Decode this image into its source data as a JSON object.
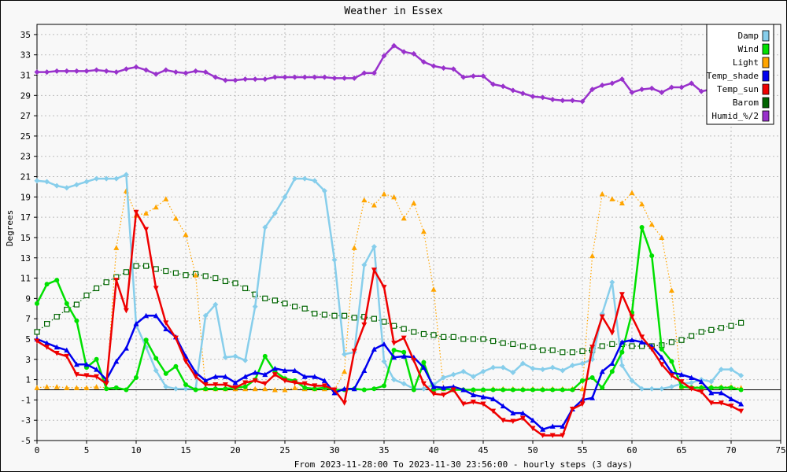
{
  "chart_data": {
    "type": "line",
    "title": "Weather in Essex",
    "xlabel": "From 2023-11-28:00 To 2023-11-30 23:56:00 - hourly steps (3 days)",
    "ylabel": "Degrees",
    "xlim": [
      0,
      75
    ],
    "ylim": [
      -5,
      36
    ],
    "xticks": [
      0,
      5,
      10,
      15,
      20,
      25,
      30,
      35,
      40,
      45,
      50,
      55,
      60,
      65,
      70,
      75
    ],
    "yticks": [
      -5,
      -3,
      -1,
      1,
      3,
      5,
      7,
      9,
      11,
      13,
      15,
      17,
      19,
      21,
      23,
      25,
      27,
      29,
      31,
      33,
      35
    ],
    "grid": true,
    "legend": "top-right",
    "x": [
      0,
      1,
      2,
      3,
      4,
      5,
      6,
      7,
      8,
      9,
      10,
      11,
      12,
      13,
      14,
      15,
      16,
      17,
      18,
      19,
      20,
      21,
      22,
      23,
      24,
      25,
      26,
      27,
      28,
      29,
      30,
      31,
      32,
      33,
      34,
      35,
      36,
      37,
      38,
      39,
      40,
      41,
      42,
      43,
      44,
      45,
      46,
      47,
      48,
      49,
      50,
      51,
      52,
      53,
      54,
      55,
      56,
      57,
      58,
      59,
      60,
      61,
      62,
      63,
      64,
      65,
      66,
      67,
      68,
      69,
      70,
      71
    ],
    "series": [
      {
        "name": "Damp",
        "color": "#87ceeb",
        "style": "solid",
        "marker": "diamond",
        "values": [
          20.6,
          20.5,
          20.1,
          19.9,
          20.2,
          20.5,
          20.8,
          20.8,
          20.8,
          21.2,
          6.4,
          4.2,
          1.9,
          0.3,
          0.1,
          0.1,
          0.1,
          7.3,
          8.4,
          3.2,
          3.3,
          2.9,
          8.2,
          16.0,
          17.4,
          19.0,
          20.8,
          20.8,
          20.6,
          19.6,
          12.8,
          3.5,
          3.7,
          12.3,
          14.1,
          2.8,
          1.0,
          0.6,
          0.1,
          0.1,
          0.5,
          1.2,
          1.5,
          1.8,
          1.3,
          1.8,
          2.2,
          2.2,
          1.7,
          2.6,
          2.1,
          2.0,
          2.2,
          1.9,
          2.4,
          2.6,
          3.0,
          7.5,
          10.6,
          2.4,
          0.9,
          0.1,
          0.1,
          0.1,
          0.3,
          0.6,
          0.7,
          1.0,
          0.8,
          2.0,
          2.0,
          1.4
        ]
      },
      {
        "name": "Wind",
        "color": "#00e000",
        "style": "solid",
        "marker": "circle",
        "values": [
          8.5,
          10.4,
          10.8,
          8.5,
          6.8,
          2.2,
          3.0,
          0.1,
          0.2,
          0.0,
          1.2,
          4.9,
          3.1,
          1.6,
          2.3,
          0.5,
          0.0,
          0.1,
          0.1,
          0.1,
          0.2,
          0.3,
          1.0,
          3.3,
          1.8,
          1.1,
          0.9,
          0.2,
          0.1,
          0.2,
          0.0,
          0.0,
          0.1,
          0.0,
          0.1,
          0.4,
          3.9,
          3.7,
          0.0,
          2.7,
          0.0,
          0.1,
          0.0,
          0.0,
          0.0,
          0.0,
          0.0,
          0.0,
          0.0,
          0.0,
          0.0,
          0.0,
          0.0,
          0.0,
          0.0,
          0.9,
          1.2,
          0.2,
          1.8,
          3.7,
          7.6,
          16.0,
          13.2,
          4.0,
          2.8,
          0.3,
          0.2,
          0.2,
          0.2,
          0.2,
          0.2,
          0.0
        ]
      },
      {
        "name": "Light",
        "color": "#ffa500",
        "style": "dotted",
        "marker": "triangle",
        "values": [
          0.2,
          0.3,
          0.3,
          0.2,
          0.2,
          0.2,
          0.3,
          0.2,
          14.0,
          19.6,
          17.2,
          17.4,
          18.0,
          18.8,
          16.9,
          15.3,
          11.3,
          0.1,
          0.1,
          0.1,
          0.1,
          0.1,
          0.1,
          0.1,
          0.0,
          0.0,
          0.2,
          0.1,
          0.1,
          0.1,
          0.0,
          1.8,
          14.0,
          18.7,
          18.2,
          19.3,
          19.0,
          16.9,
          18.4,
          15.6,
          9.9,
          0.1,
          0.0,
          0.0,
          0.0,
          0.0,
          0.1,
          0.1,
          0.1,
          0.1,
          0.1,
          0.1,
          0.1,
          0.1,
          0.1,
          0.1,
          13.2,
          19.3,
          18.8,
          18.4,
          19.4,
          18.3,
          16.3,
          15.0,
          9.8,
          0.3,
          0.3,
          0.3,
          0.3,
          0.3,
          0.3,
          0.2
        ]
      },
      {
        "name": "Temp_shade",
        "color": "#0000ee",
        "style": "solid",
        "marker": "triangle",
        "values": [
          5.0,
          4.6,
          4.2,
          3.9,
          2.5,
          2.5,
          2.0,
          1.0,
          2.8,
          4.1,
          6.5,
          7.3,
          7.3,
          6.0,
          5.2,
          3.3,
          1.7,
          0.9,
          1.3,
          1.3,
          0.7,
          1.3,
          1.7,
          1.5,
          2.1,
          1.9,
          1.9,
          1.3,
          1.3,
          0.9,
          -0.3,
          0.1,
          0.1,
          1.9,
          4.0,
          4.5,
          3.2,
          3.3,
          3.2,
          2.2,
          0.3,
          0.2,
          0.3,
          0.0,
          -0.5,
          -0.7,
          -0.9,
          -1.6,
          -2.3,
          -2.3,
          -3.0,
          -3.9,
          -3.6,
          -3.6,
          -1.9,
          -1.0,
          -0.8,
          1.8,
          2.6,
          4.7,
          4.9,
          4.7,
          4.3,
          3.2,
          1.7,
          1.5,
          1.2,
          0.8,
          -0.3,
          -0.3,
          -0.9,
          -1.4
        ]
      },
      {
        "name": "Temp_sun",
        "color": "#ee0000",
        "style": "solid",
        "marker": "triangle-down",
        "values": [
          4.8,
          4.2,
          3.6,
          3.3,
          1.5,
          1.4,
          1.3,
          0.6,
          10.8,
          7.8,
          17.5,
          15.8,
          10.0,
          6.6,
          5.1,
          2.8,
          1.3,
          0.5,
          0.5,
          0.5,
          0.2,
          0.7,
          0.9,
          0.6,
          1.5,
          0.9,
          0.7,
          0.6,
          0.4,
          0.4,
          0.0,
          -1.3,
          3.8,
          6.4,
          11.8,
          10.1,
          4.6,
          5.1,
          2.9,
          0.6,
          -0.4,
          -0.5,
          0.0,
          -1.4,
          -1.2,
          -1.4,
          -2.1,
          -3.0,
          -3.1,
          -2.8,
          -3.8,
          -4.5,
          -4.5,
          -4.5,
          -1.9,
          -1.4,
          4.2,
          7.2,
          5.6,
          9.4,
          7.2,
          5.2,
          4.0,
          2.5,
          1.4,
          0.8,
          0.1,
          -0.2,
          -1.3,
          -1.3,
          -1.6,
          -2.1
        ]
      },
      {
        "name": "Barom",
        "color": "#006400",
        "style": "dotted",
        "marker": "square",
        "values": [
          5.7,
          6.5,
          7.2,
          7.9,
          8.4,
          9.3,
          10.0,
          10.6,
          11.1,
          11.6,
          12.2,
          12.2,
          11.9,
          11.7,
          11.5,
          11.3,
          11.4,
          11.2,
          11.0,
          10.7,
          10.5,
          10.0,
          9.4,
          9.0,
          8.8,
          8.5,
          8.2,
          8.0,
          7.5,
          7.4,
          7.3,
          7.3,
          7.1,
          7.2,
          7.0,
          6.7,
          6.3,
          6.0,
          5.7,
          5.5,
          5.4,
          5.2,
          5.2,
          5.0,
          5.0,
          5.0,
          4.8,
          4.6,
          4.5,
          4.3,
          4.2,
          3.9,
          3.9,
          3.7,
          3.7,
          3.8,
          3.9,
          4.3,
          4.5,
          4.5,
          4.3,
          4.3,
          4.3,
          4.4,
          4.7,
          4.9,
          5.3,
          5.7,
          5.9,
          6.1,
          6.3,
          6.6
        ]
      },
      {
        "name": "Humid_%/2",
        "color": "#9932cc",
        "style": "solid",
        "marker": "diamond",
        "values": [
          31.3,
          31.3,
          31.4,
          31.4,
          31.4,
          31.4,
          31.5,
          31.4,
          31.3,
          31.6,
          31.8,
          31.5,
          31.1,
          31.5,
          31.3,
          31.2,
          31.4,
          31.3,
          30.8,
          30.5,
          30.5,
          30.6,
          30.6,
          30.6,
          30.8,
          30.8,
          30.8,
          30.8,
          30.8,
          30.8,
          30.7,
          30.7,
          30.7,
          31.2,
          31.2,
          32.9,
          33.9,
          33.3,
          33.1,
          32.3,
          31.9,
          31.7,
          31.6,
          30.8,
          30.9,
          30.9,
          30.1,
          29.9,
          29.5,
          29.2,
          28.9,
          28.8,
          28.6,
          28.5,
          28.5,
          28.4,
          29.6,
          30.0,
          30.2,
          30.6,
          29.3,
          29.6,
          29.7,
          29.3,
          29.8,
          29.8,
          30.2,
          29.4,
          29.6,
          null,
          null,
          null
        ]
      }
    ]
  }
}
